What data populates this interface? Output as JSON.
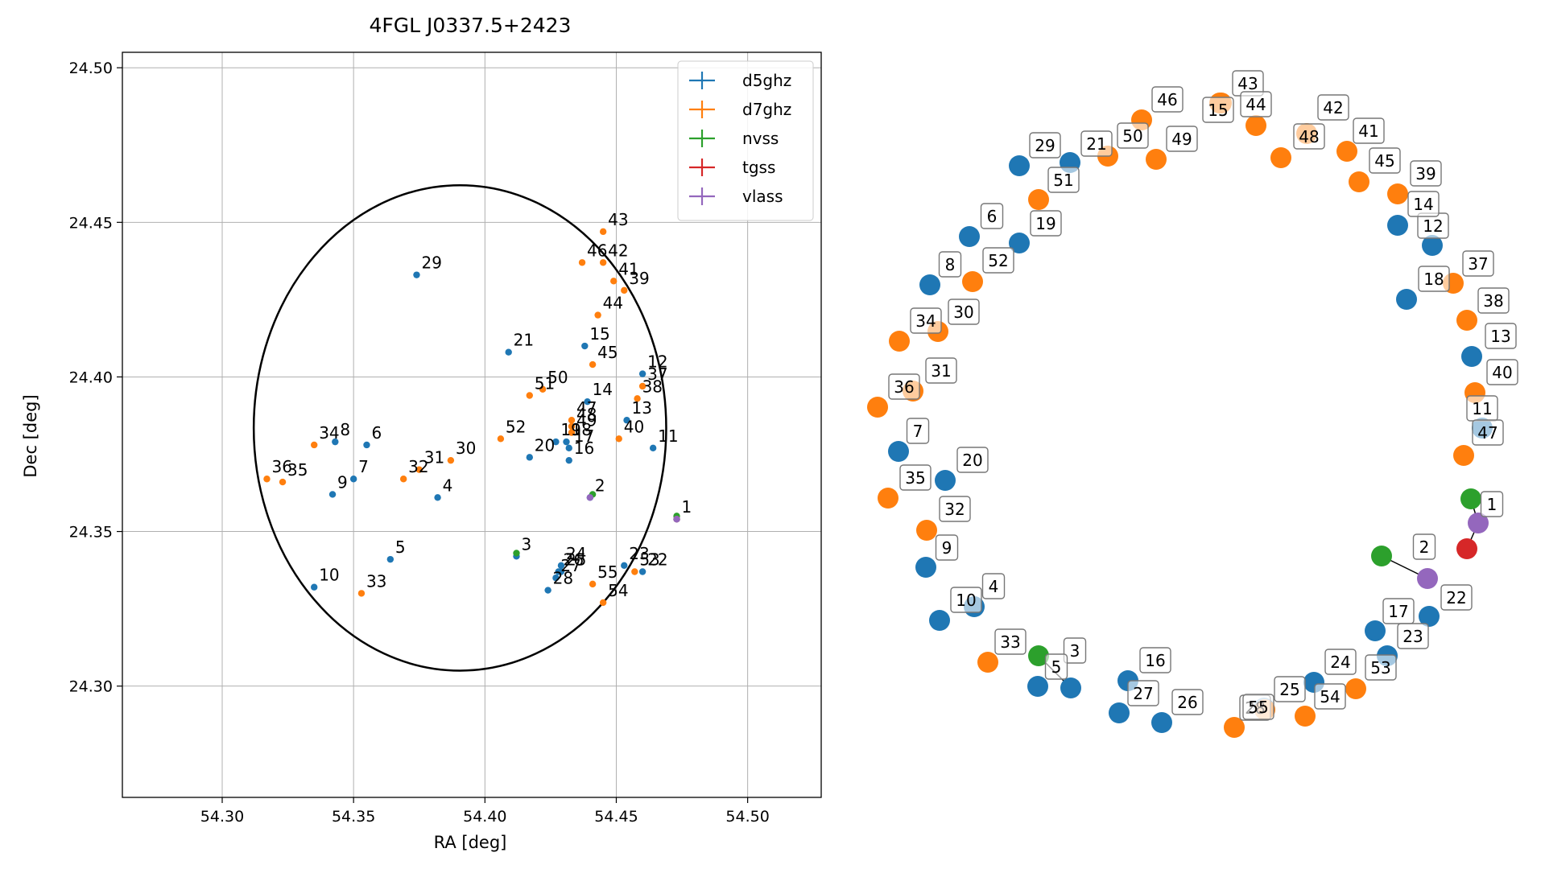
{
  "chart_data": [
    {
      "type": "scatter",
      "title": "4FGL J0337.5+2423",
      "xlabel": "RA [deg]",
      "ylabel": "Dec [deg]",
      "xlim": [
        54.262,
        54.528
      ],
      "ylim": [
        24.264,
        24.505
      ],
      "xticks": [
        54.3,
        54.35,
        54.4,
        54.45,
        54.5
      ],
      "yticks": [
        24.3,
        24.35,
        24.4,
        24.45,
        24.5
      ],
      "xtick_labels": [
        "54.30",
        "54.35",
        "54.40",
        "54.45",
        "54.50"
      ],
      "ytick_labels": [
        "24.30",
        "24.35",
        "24.40",
        "24.45",
        "24.50"
      ],
      "grid": true,
      "legend_position": "top-right",
      "error_circle": {
        "ra": 54.3905,
        "dec": 24.3835,
        "radius": 0.0785
      },
      "colors": {
        "d5ghz": "#1f77b4",
        "d7ghz": "#ff7f0e",
        "nvss": "#2ca02c",
        "tgss": "#d62728",
        "vlass": "#9467bd"
      },
      "series": [
        {
          "name": "d5ghz",
          "points": [
            [
              54.473,
              24.354,
              "1"
            ],
            [
              54.44,
              24.361,
              "2"
            ],
            [
              54.412,
              24.342,
              "3"
            ],
            [
              54.382,
              24.361,
              "4"
            ],
            [
              54.364,
              24.341,
              "5"
            ],
            [
              54.355,
              24.378,
              "6"
            ],
            [
              54.35,
              24.367,
              "7"
            ],
            [
              54.343,
              24.379,
              "8"
            ],
            [
              54.342,
              24.362,
              "9"
            ],
            [
              54.335,
              24.332,
              "10"
            ],
            [
              54.464,
              24.377,
              "11"
            ],
            [
              54.46,
              24.401,
              "12"
            ],
            [
              54.454,
              24.386,
              "13"
            ],
            [
              54.439,
              24.392,
              "14"
            ],
            [
              54.438,
              24.41,
              "15"
            ],
            [
              54.432,
              24.373,
              "16"
            ],
            [
              54.432,
              24.377,
              "17"
            ],
            [
              54.431,
              24.379,
              "18"
            ],
            [
              54.427,
              24.379,
              "19"
            ],
            [
              54.417,
              24.374,
              "20"
            ],
            [
              54.409,
              24.408,
              "21"
            ],
            [
              54.46,
              24.337,
              "22"
            ],
            [
              54.453,
              24.339,
              "23"
            ],
            [
              54.429,
              24.339,
              "24"
            ],
            [
              54.429,
              24.337,
              "25"
            ],
            [
              54.428,
              24.337,
              "26"
            ],
            [
              54.427,
              24.335,
              "27"
            ],
            [
              54.424,
              24.331,
              "28"
            ],
            [
              54.374,
              24.433,
              "29"
            ]
          ]
        },
        {
          "name": "d7ghz",
          "points": [
            [
              54.387,
              24.373,
              "30"
            ],
            [
              54.375,
              24.37,
              "31"
            ],
            [
              54.369,
              24.367,
              "32"
            ],
            [
              54.353,
              24.33,
              "33"
            ],
            [
              54.335,
              24.378,
              "34"
            ],
            [
              54.323,
              24.366,
              "35"
            ],
            [
              54.317,
              24.367,
              "36"
            ],
            [
              54.46,
              24.397,
              "37"
            ],
            [
              54.458,
              24.393,
              "38"
            ],
            [
              54.453,
              24.428,
              "39"
            ],
            [
              54.451,
              24.38,
              "40"
            ],
            [
              54.449,
              24.431,
              "41"
            ],
            [
              54.445,
              24.437,
              "42"
            ],
            [
              54.445,
              24.447,
              "43"
            ],
            [
              54.443,
              24.42,
              "44"
            ],
            [
              54.441,
              24.404,
              "45"
            ],
            [
              54.437,
              24.437,
              "46"
            ],
            [
              54.433,
              24.386,
              "47"
            ],
            [
              54.433,
              24.384,
              "48"
            ],
            [
              54.433,
              24.382,
              "49"
            ],
            [
              54.422,
              24.396,
              "50"
            ],
            [
              54.417,
              24.394,
              "51"
            ],
            [
              54.406,
              24.38,
              "52"
            ],
            [
              54.457,
              24.337,
              "53"
            ],
            [
              54.445,
              24.327,
              "54"
            ],
            [
              54.441,
              24.333,
              "55"
            ]
          ]
        },
        {
          "name": "nvss",
          "points": [
            [
              54.473,
              24.355,
              ""
            ],
            [
              54.441,
              24.362,
              ""
            ],
            [
              54.412,
              24.343,
              ""
            ]
          ]
        },
        {
          "name": "tgss",
          "points": [
            [
              54.473,
              24.354,
              ""
            ]
          ]
        },
        {
          "name": "vlass",
          "points": [
            [
              54.473,
              24.354,
              ""
            ],
            [
              54.44,
              24.361,
              ""
            ]
          ]
        }
      ]
    },
    {
      "type": "scatter",
      "title": "",
      "nodes": [
        {
          "label": "1",
          "c": "vlass"
        },
        {
          "label": "2",
          "c": "vlass"
        },
        {
          "label": "3",
          "c": "d5ghz"
        },
        {
          "label": "4",
          "c": "d5ghz"
        },
        {
          "label": "5",
          "c": "d5ghz"
        },
        {
          "label": "6",
          "c": "d5ghz"
        },
        {
          "label": "7",
          "c": "d5ghz"
        },
        {
          "label": "8",
          "c": "d5ghz"
        },
        {
          "label": "9",
          "c": "d5ghz"
        },
        {
          "label": "10",
          "c": "d5ghz"
        },
        {
          "label": "11",
          "c": "d5ghz"
        },
        {
          "label": "12",
          "c": "d5ghz"
        },
        {
          "label": "13",
          "c": "d5ghz"
        },
        {
          "label": "14",
          "c": "d5ghz"
        },
        {
          "label": "15",
          "c": "d7ghz"
        },
        {
          "label": "16",
          "c": "d5ghz"
        },
        {
          "label": "17",
          "c": "d5ghz"
        },
        {
          "label": "18",
          "c": "d5ghz"
        },
        {
          "label": "19",
          "c": "d5ghz"
        },
        {
          "label": "20",
          "c": "d5ghz"
        },
        {
          "label": "21",
          "c": "d5ghz"
        },
        {
          "label": "22",
          "c": "d5ghz"
        },
        {
          "label": "23",
          "c": "d5ghz"
        },
        {
          "label": "24",
          "c": "d5ghz"
        },
        {
          "label": "25",
          "c": "d5ghz"
        },
        {
          "label": "26",
          "c": "d5ghz"
        },
        {
          "label": "27",
          "c": "d5ghz"
        },
        {
          "label": "28",
          "c": "d7ghz"
        },
        {
          "label": "29",
          "c": "d5ghz"
        },
        {
          "label": "30",
          "c": "d7ghz"
        },
        {
          "label": "31",
          "c": "d7ghz"
        },
        {
          "label": "32",
          "c": "d7ghz"
        },
        {
          "label": "33",
          "c": "d7ghz"
        },
        {
          "label": "34",
          "c": "d7ghz"
        },
        {
          "label": "35",
          "c": "d7ghz"
        },
        {
          "label": "36",
          "c": "d7ghz"
        },
        {
          "label": "37",
          "c": "d7ghz"
        },
        {
          "label": "38",
          "c": "d7ghz"
        },
        {
          "label": "39",
          "c": "d7ghz"
        },
        {
          "label": "40",
          "c": "d7ghz"
        },
        {
          "label": "41",
          "c": "d7ghz"
        },
        {
          "label": "42",
          "c": "d7ghz"
        },
        {
          "label": "43",
          "c": "d7ghz"
        },
        {
          "label": "44",
          "c": "d7ghz"
        },
        {
          "label": "45",
          "c": "d7ghz"
        },
        {
          "label": "46",
          "c": "d7ghz"
        },
        {
          "label": "47",
          "c": "d7ghz"
        },
        {
          "label": "48",
          "c": "d7ghz"
        },
        {
          "label": "49",
          "c": "d7ghz"
        },
        {
          "label": "50",
          "c": "d7ghz"
        },
        {
          "label": "51",
          "c": "d7ghz"
        },
        {
          "label": "52",
          "c": "d7ghz"
        },
        {
          "label": "53",
          "c": "d7ghz"
        },
        {
          "label": "54",
          "c": "d7ghz"
        },
        {
          "label": "55",
          "c": "d7ghz"
        }
      ]
    }
  ]
}
